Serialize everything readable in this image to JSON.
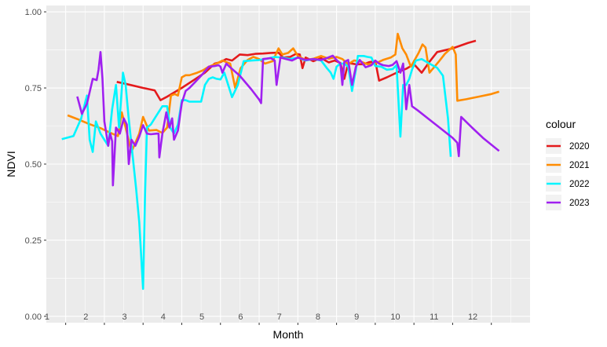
{
  "chart_data": {
    "type": "line",
    "xlabel": "Month",
    "ylabel": "NDVI",
    "ylim": [
      0,
      1
    ],
    "xlim": [
      0.5,
      13.0
    ],
    "y_ticks": [
      "0.00",
      "0.25",
      "0.50",
      "0.75",
      "1.00"
    ],
    "month_labels": [
      "1",
      "2",
      "3",
      "4",
      "5",
      "6",
      "7",
      "8",
      "9",
      "10",
      "11",
      "12"
    ],
    "grid": true,
    "legend": {
      "title": "colour",
      "position": "right"
    },
    "series": [
      {
        "name": "2020",
        "color": "#e41a1c",
        "points": [
          [
            2.32,
            0.77
          ],
          [
            2.5,
            0.765
          ],
          [
            3.0,
            0.75
          ],
          [
            3.3,
            0.742
          ],
          [
            3.45,
            0.71
          ],
          [
            3.6,
            0.72
          ],
          [
            4.0,
            0.75
          ],
          [
            4.3,
            0.775
          ],
          [
            4.6,
            0.8
          ],
          [
            4.85,
            0.83
          ],
          [
            5.0,
            0.835
          ],
          [
            5.15,
            0.845
          ],
          [
            5.3,
            0.84
          ],
          [
            5.5,
            0.86
          ],
          [
            5.7,
            0.858
          ],
          [
            5.9,
            0.862
          ],
          [
            6.1,
            0.863
          ],
          [
            6.3,
            0.865
          ],
          [
            6.5,
            0.866
          ],
          [
            6.62,
            0.85
          ],
          [
            6.8,
            0.852
          ],
          [
            6.95,
            0.862
          ],
          [
            7.05,
            0.86
          ],
          [
            7.12,
            0.815
          ],
          [
            7.2,
            0.85
          ],
          [
            7.4,
            0.838
          ],
          [
            7.6,
            0.848
          ],
          [
            7.8,
            0.834
          ],
          [
            7.95,
            0.84
          ],
          [
            8.1,
            0.832
          ],
          [
            8.2,
            0.78
          ],
          [
            8.3,
            0.832
          ],
          [
            8.5,
            0.828
          ],
          [
            8.7,
            0.828
          ],
          [
            8.85,
            0.835
          ],
          [
            9.0,
            0.838
          ],
          [
            9.1,
            0.774
          ],
          [
            9.3,
            0.785
          ],
          [
            9.6,
            0.803
          ],
          [
            9.8,
            0.813
          ],
          [
            10.0,
            0.828
          ],
          [
            10.2,
            0.8
          ],
          [
            10.4,
            0.836
          ],
          [
            10.6,
            0.868
          ],
          [
            11.0,
            0.88
          ],
          [
            11.4,
            0.898
          ],
          [
            11.6,
            0.905
          ]
        ]
      },
      {
        "name": "2021",
        "color": "#ff8c00",
        "points": [
          [
            1.05,
            0.66
          ],
          [
            1.3,
            0.648
          ],
          [
            1.6,
            0.632
          ],
          [
            1.9,
            0.618
          ],
          [
            2.2,
            0.6
          ],
          [
            2.35,
            0.592
          ],
          [
            2.45,
            0.67
          ],
          [
            2.55,
            0.62
          ],
          [
            2.7,
            0.54
          ],
          [
            2.9,
            0.6
          ],
          [
            3.0,
            0.655
          ],
          [
            3.15,
            0.61
          ],
          [
            3.35,
            0.612
          ],
          [
            3.5,
            0.602
          ],
          [
            3.62,
            0.62
          ],
          [
            3.72,
            0.725
          ],
          [
            3.82,
            0.73
          ],
          [
            3.9,
            0.725
          ],
          [
            4.0,
            0.785
          ],
          [
            4.1,
            0.792
          ],
          [
            4.2,
            0.792
          ],
          [
            4.4,
            0.8
          ],
          [
            4.55,
            0.808
          ],
          [
            4.7,
            0.82
          ],
          [
            4.9,
            0.83
          ],
          [
            5.05,
            0.84
          ],
          [
            5.25,
            0.83
          ],
          [
            5.38,
            0.75
          ],
          [
            5.52,
            0.815
          ],
          [
            5.7,
            0.842
          ],
          [
            5.85,
            0.852
          ],
          [
            6.0,
            0.845
          ],
          [
            6.15,
            0.83
          ],
          [
            6.35,
            0.838
          ],
          [
            6.5,
            0.88
          ],
          [
            6.6,
            0.86
          ],
          [
            6.75,
            0.865
          ],
          [
            6.88,
            0.88
          ],
          [
            7.0,
            0.855
          ],
          [
            7.2,
            0.842
          ],
          [
            7.4,
            0.846
          ],
          [
            7.6,
            0.855
          ],
          [
            7.8,
            0.846
          ],
          [
            8.0,
            0.852
          ],
          [
            8.15,
            0.845
          ],
          [
            8.3,
            0.828
          ],
          [
            8.45,
            0.84
          ],
          [
            8.6,
            0.838
          ],
          [
            8.8,
            0.828
          ],
          [
            9.0,
            0.83
          ],
          [
            9.2,
            0.842
          ],
          [
            9.4,
            0.85
          ],
          [
            9.52,
            0.86
          ],
          [
            9.58,
            0.928
          ],
          [
            9.7,
            0.88
          ],
          [
            9.8,
            0.86
          ],
          [
            9.92,
            0.82
          ],
          [
            10.0,
            0.838
          ],
          [
            10.12,
            0.865
          ],
          [
            10.22,
            0.893
          ],
          [
            10.3,
            0.883
          ],
          [
            10.4,
            0.8
          ],
          [
            10.5,
            0.815
          ],
          [
            10.65,
            0.838
          ],
          [
            10.8,
            0.862
          ],
          [
            11.0,
            0.885
          ],
          [
            11.08,
            0.86
          ],
          [
            11.12,
            0.708
          ],
          [
            11.35,
            0.713
          ],
          [
            11.7,
            0.722
          ],
          [
            12.0,
            0.73
          ],
          [
            12.2,
            0.738
          ]
        ]
      },
      {
        "name": "2022",
        "color": "#00f5ff",
        "points": [
          [
            0.9,
            0.582
          ],
          [
            1.2,
            0.592
          ],
          [
            1.4,
            0.65
          ],
          [
            1.55,
            0.725
          ],
          [
            1.62,
            0.58
          ],
          [
            1.7,
            0.54
          ],
          [
            1.78,
            0.64
          ],
          [
            1.9,
            0.6
          ],
          [
            2.0,
            0.58
          ],
          [
            2.1,
            0.56
          ],
          [
            2.2,
            0.68
          ],
          [
            2.3,
            0.76
          ],
          [
            2.38,
            0.62
          ],
          [
            2.48,
            0.8
          ],
          [
            2.55,
            0.76
          ],
          [
            2.62,
            0.66
          ],
          [
            2.72,
            0.54
          ],
          [
            2.82,
            0.42
          ],
          [
            2.9,
            0.31
          ],
          [
            3.0,
            0.09
          ],
          [
            3.05,
            0.4
          ],
          [
            3.1,
            0.62
          ],
          [
            3.2,
            0.63
          ],
          [
            3.35,
            0.66
          ],
          [
            3.5,
            0.69
          ],
          [
            3.62,
            0.69
          ],
          [
            3.7,
            0.62
          ],
          [
            3.8,
            0.6
          ],
          [
            3.9,
            0.63
          ],
          [
            4.0,
            0.71
          ],
          [
            4.1,
            0.71
          ],
          [
            4.2,
            0.705
          ],
          [
            4.35,
            0.705
          ],
          [
            4.5,
            0.705
          ],
          [
            4.6,
            0.76
          ],
          [
            4.7,
            0.78
          ],
          [
            4.8,
            0.785
          ],
          [
            4.9,
            0.78
          ],
          [
            5.0,
            0.778
          ],
          [
            5.1,
            0.8
          ],
          [
            5.2,
            0.76
          ],
          [
            5.3,
            0.72
          ],
          [
            5.45,
            0.76
          ],
          [
            5.6,
            0.838
          ],
          [
            5.8,
            0.84
          ],
          [
            6.0,
            0.842
          ],
          [
            6.2,
            0.846
          ],
          [
            6.4,
            0.852
          ],
          [
            6.6,
            0.85
          ],
          [
            6.8,
            0.845
          ],
          [
            7.0,
            0.85
          ],
          [
            7.2,
            0.84
          ],
          [
            7.4,
            0.845
          ],
          [
            7.6,
            0.84
          ],
          [
            7.75,
            0.815
          ],
          [
            7.85,
            0.8
          ],
          [
            7.92,
            0.78
          ],
          [
            8.0,
            0.82
          ],
          [
            8.1,
            0.83
          ],
          [
            8.2,
            0.83
          ],
          [
            8.3,
            0.82
          ],
          [
            8.4,
            0.74
          ],
          [
            8.5,
            0.81
          ],
          [
            8.55,
            0.855
          ],
          [
            8.7,
            0.855
          ],
          [
            8.8,
            0.852
          ],
          [
            8.9,
            0.85
          ],
          [
            9.0,
            0.822
          ],
          [
            9.15,
            0.82
          ],
          [
            9.3,
            0.81
          ],
          [
            9.45,
            0.812
          ],
          [
            9.55,
            0.825
          ],
          [
            9.65,
            0.59
          ],
          [
            9.72,
            0.76
          ],
          [
            9.8,
            0.76
          ],
          [
            9.88,
            0.78
          ],
          [
            9.95,
            0.81
          ],
          [
            10.05,
            0.84
          ],
          [
            10.2,
            0.845
          ],
          [
            10.4,
            0.83
          ],
          [
            10.6,
            0.816
          ],
          [
            10.75,
            0.79
          ],
          [
            10.88,
            0.65
          ],
          [
            10.95,
            0.524
          ]
        ]
      },
      {
        "name": "2023",
        "color": "#a020f0",
        "points": [
          [
            1.3,
            0.722
          ],
          [
            1.42,
            0.665
          ],
          [
            1.55,
            0.698
          ],
          [
            1.7,
            0.78
          ],
          [
            1.8,
            0.776
          ],
          [
            1.85,
            0.81
          ],
          [
            1.9,
            0.868
          ],
          [
            1.95,
            0.78
          ],
          [
            2.0,
            0.64
          ],
          [
            2.05,
            0.6
          ],
          [
            2.1,
            0.56
          ],
          [
            2.15,
            0.6
          ],
          [
            2.2,
            0.575
          ],
          [
            2.22,
            0.43
          ],
          [
            2.3,
            0.62
          ],
          [
            2.4,
            0.6
          ],
          [
            2.5,
            0.65
          ],
          [
            2.58,
            0.63
          ],
          [
            2.63,
            0.5
          ],
          [
            2.7,
            0.58
          ],
          [
            2.8,
            0.56
          ],
          [
            2.9,
            0.59
          ],
          [
            3.0,
            0.628
          ],
          [
            3.1,
            0.6
          ],
          [
            3.2,
            0.598
          ],
          [
            3.35,
            0.6
          ],
          [
            3.4,
            0.6
          ],
          [
            3.42,
            0.522
          ],
          [
            3.5,
            0.6
          ],
          [
            3.6,
            0.67
          ],
          [
            3.68,
            0.62
          ],
          [
            3.75,
            0.65
          ],
          [
            3.8,
            0.58
          ],
          [
            3.9,
            0.61
          ],
          [
            4.0,
            0.7
          ],
          [
            4.1,
            0.74
          ],
          [
            4.2,
            0.75
          ],
          [
            4.35,
            0.77
          ],
          [
            4.5,
            0.79
          ],
          [
            4.7,
            0.82
          ],
          [
            4.85,
            0.822
          ],
          [
            4.95,
            0.825
          ],
          [
            5.0,
            0.82
          ],
          [
            5.05,
            0.8
          ],
          [
            5.15,
            0.83
          ],
          [
            5.25,
            0.818
          ],
          [
            5.5,
            0.79
          ],
          [
            5.8,
            0.745
          ],
          [
            6.0,
            0.712
          ],
          [
            6.05,
            0.7
          ],
          [
            6.1,
            0.845
          ],
          [
            6.3,
            0.848
          ],
          [
            6.4,
            0.84
          ],
          [
            6.45,
            0.76
          ],
          [
            6.55,
            0.85
          ],
          [
            6.7,
            0.845
          ],
          [
            6.85,
            0.84
          ],
          [
            7.0,
            0.85
          ],
          [
            7.2,
            0.842
          ],
          [
            7.4,
            0.845
          ],
          [
            7.6,
            0.842
          ],
          [
            7.75,
            0.848
          ],
          [
            7.9,
            0.856
          ],
          [
            8.0,
            0.842
          ],
          [
            8.1,
            0.83
          ],
          [
            8.15,
            0.76
          ],
          [
            8.2,
            0.836
          ],
          [
            8.3,
            0.842
          ],
          [
            8.4,
            0.76
          ],
          [
            8.5,
            0.82
          ],
          [
            8.6,
            0.842
          ],
          [
            8.75,
            0.818
          ],
          [
            8.9,
            0.825
          ],
          [
            9.0,
            0.84
          ],
          [
            9.1,
            0.83
          ],
          [
            9.2,
            0.825
          ],
          [
            9.35,
            0.822
          ],
          [
            9.45,
            0.826
          ],
          [
            9.55,
            0.838
          ],
          [
            9.65,
            0.8
          ],
          [
            9.72,
            0.83
          ],
          [
            9.8,
            0.68
          ],
          [
            9.88,
            0.76
          ],
          [
            9.95,
            0.69
          ],
          [
            10.1,
            0.676
          ],
          [
            10.4,
            0.646
          ],
          [
            10.7,
            0.616
          ],
          [
            11.0,
            0.586
          ],
          [
            11.12,
            0.57
          ],
          [
            11.16,
            0.526
          ],
          [
            11.22,
            0.655
          ],
          [
            11.5,
            0.62
          ],
          [
            11.8,
            0.584
          ],
          [
            12.2,
            0.543
          ]
        ]
      }
    ]
  }
}
